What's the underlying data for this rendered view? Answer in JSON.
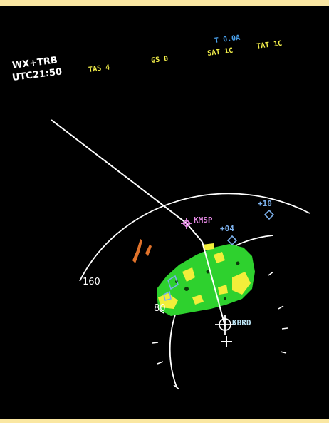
{
  "header": {
    "mode_line1": "WX+TRB",
    "mode_line2_prefix": "UTC",
    "mode_line2_time": "21:50",
    "tas": "TAS 4",
    "gs": "GS 0",
    "sat": "SAT 1C",
    "tat": "TAT 1C",
    "t_value": "T 0.0A"
  },
  "range_labels": {
    "outer": "160",
    "inner": "80"
  },
  "waypoints": [
    {
      "id": "KMSP",
      "color": "#e48ae4"
    },
    {
      "id": "KBRD",
      "color": "#bfe8f8"
    },
    {
      "id": "+04",
      "color": "#7db2ee"
    },
    {
      "id": "+10",
      "color": "#7db2ee"
    }
  ],
  "colors": {
    "background": "#000000",
    "header_white": "#ffffff",
    "header_yellow": "#f2ee4a",
    "header_cyan": "#4aa2ee",
    "wx_green": "#2ed12e",
    "wx_yellow": "#f2ee3a",
    "turbulence_magenta": "#e060e0",
    "route_line": "#ffffff",
    "frame": "#fae7a2"
  }
}
